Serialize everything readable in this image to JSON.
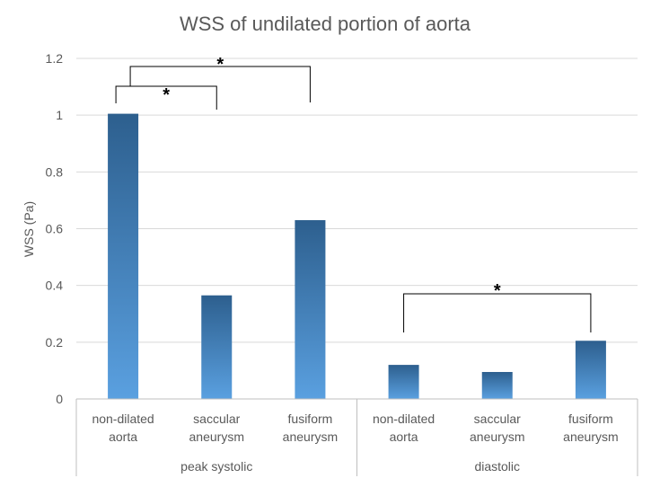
{
  "chart_data": {
    "type": "bar",
    "title": "WSS of undilated portion of aorta",
    "ylabel": "WSS (Pa)",
    "xlabel": "",
    "ylim": [
      0,
      1.2
    ],
    "yticks": [
      "0",
      "0.2",
      "0.4",
      "0.6",
      "0.8",
      "1",
      "1.2"
    ],
    "grid": true,
    "legend": "none",
    "bar_color_top": "#2d5f8e",
    "bar_color_bottom": "#5aa0e0",
    "groups": [
      {
        "label": "peak systolic",
        "categories": [
          {
            "line1": "non-dilated",
            "line2": "aorta",
            "value": 1.005
          },
          {
            "line1": "saccular",
            "line2": "aneurysm",
            "value": 0.365
          },
          {
            "line1": "fusiform",
            "line2": "aneurysm",
            "value": 0.63
          }
        ]
      },
      {
        "label": "diastolic",
        "categories": [
          {
            "line1": "non-dilated",
            "line2": "aorta",
            "value": 0.12
          },
          {
            "line1": "saccular",
            "line2": "aneurysm",
            "value": 0.095
          },
          {
            "line1": "fusiform",
            "line2": "aneurysm",
            "value": 0.205
          }
        ]
      }
    ],
    "significance": [
      {
        "from": 0,
        "to": 1,
        "label": "*"
      },
      {
        "from": 0,
        "to": 2,
        "label": "*"
      },
      {
        "from": 3,
        "to": 5,
        "label": "*"
      }
    ]
  }
}
